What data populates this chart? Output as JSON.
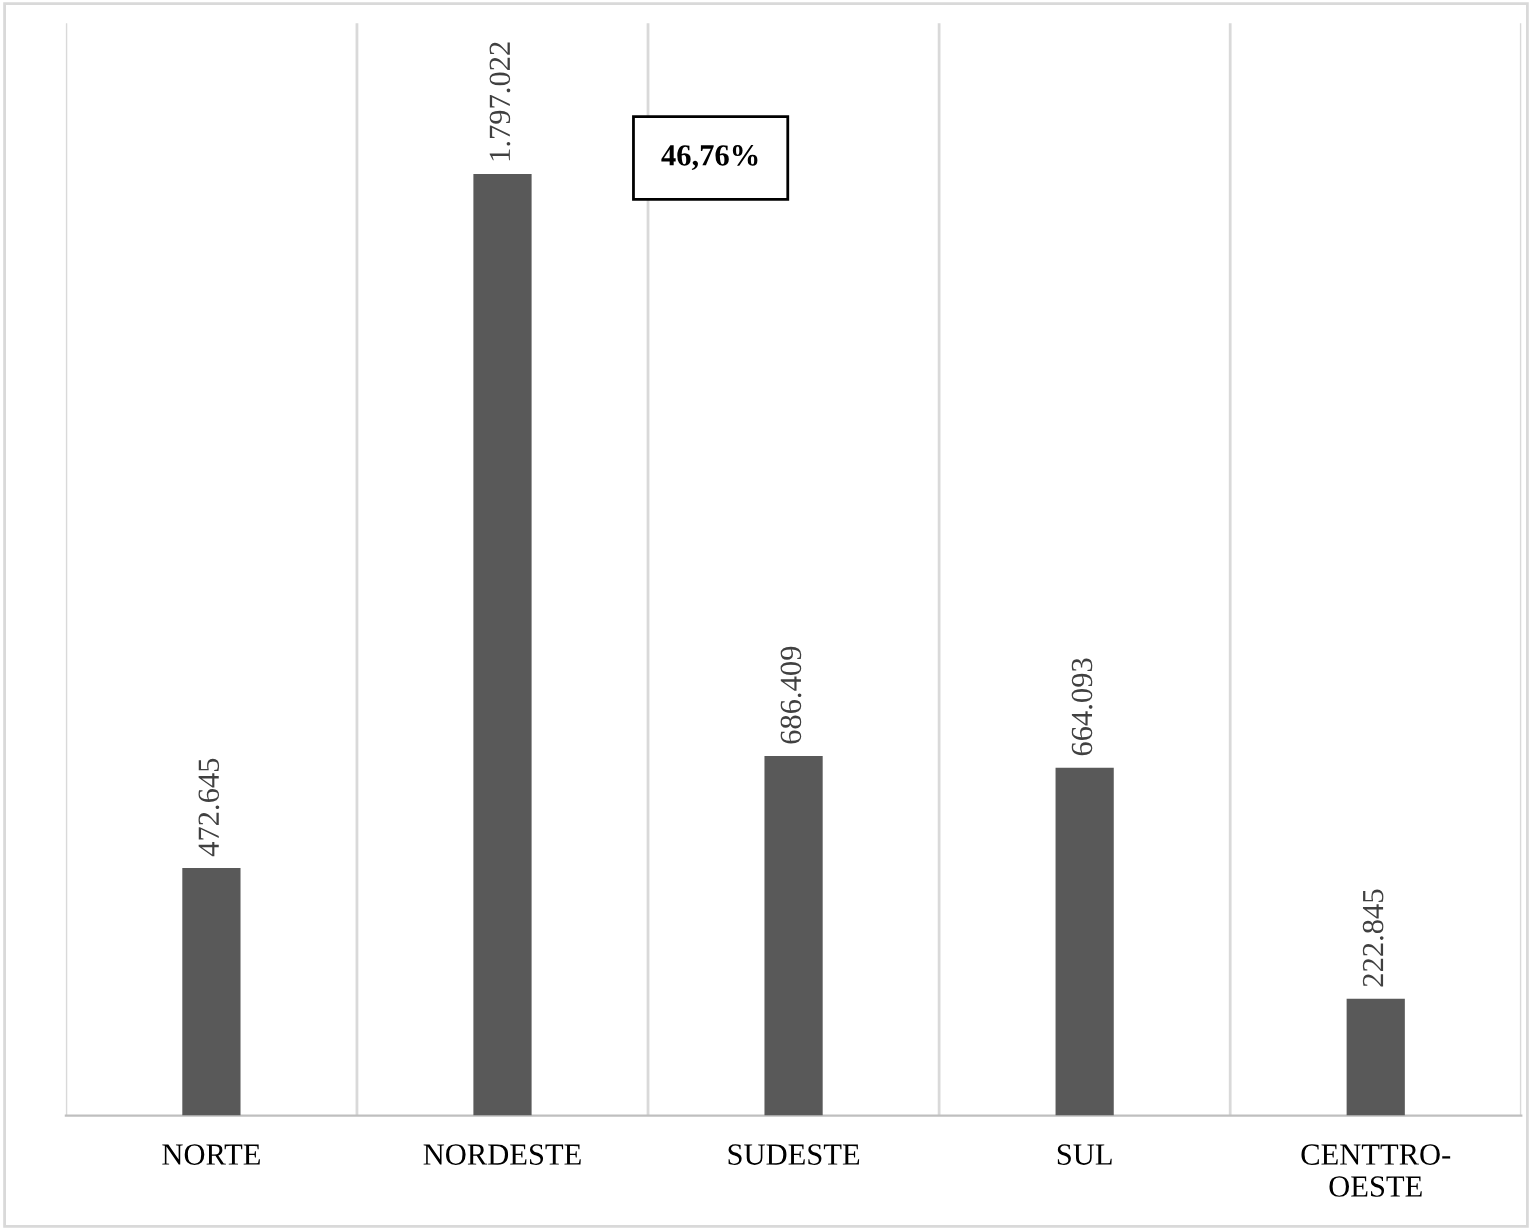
{
  "chart_data": {
    "type": "bar",
    "categories": [
      "NORTE",
      "NORDESTE",
      "SUDESTE",
      "SUL",
      "CENTTRO-\nOESTE"
    ],
    "values": [
      472645,
      1797022,
      686409,
      664093,
      222845
    ],
    "value_labels": [
      "472.645",
      "1.797.022",
      "686.409",
      "664.093",
      "222.845"
    ],
    "color": "#595959",
    "grid": "x",
    "annotations": [
      "46,76%"
    ]
  }
}
